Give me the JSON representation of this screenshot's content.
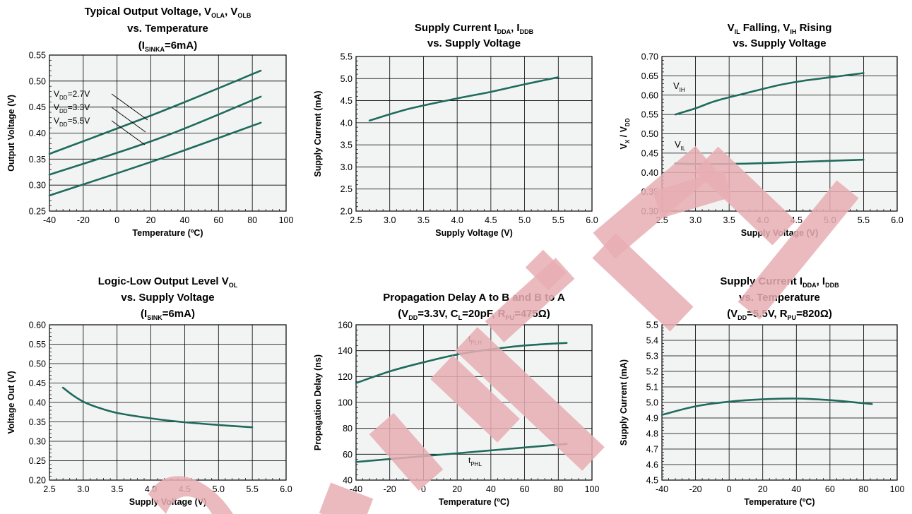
{
  "chart_data": [
    {
      "type": "line",
      "title_lines": [
        "Typical Output Voltage, V_{OLA}, V_{OLB}",
        "vs. Temperature",
        "(I_{SINKA}=6mA)"
      ],
      "xlabel": "Temperature (ºC)",
      "ylabel": "Output Voltage (V)",
      "xlim": [
        -40,
        100
      ],
      "ylim": [
        0.25,
        0.55
      ],
      "xticks": [
        -40,
        -20,
        0,
        20,
        40,
        60,
        80,
        100
      ],
      "yticks": [
        0.25,
        0.3,
        0.35,
        0.4,
        0.45,
        0.5,
        0.55
      ],
      "xtick_labels": [
        "-40",
        "-20",
        "0",
        "20",
        "40",
        "60",
        "80",
        "100"
      ],
      "ytick_labels": [
        "0.25",
        "0.30",
        "0.35",
        "0.40",
        "0.45",
        "0.50",
        "0.55"
      ],
      "grid": true,
      "series": [
        {
          "name": "V_{DD}=2.7V",
          "x": [
            -40,
            25,
            85
          ],
          "y": [
            0.36,
            0.44,
            0.52
          ]
        },
        {
          "name": "V_{DD}=3.3V",
          "x": [
            -40,
            25,
            85
          ],
          "y": [
            0.32,
            0.39,
            0.47
          ]
        },
        {
          "name": "V_{DD}=5.5V",
          "x": [
            -40,
            25,
            85
          ],
          "y": [
            0.28,
            0.35,
            0.42
          ]
        }
      ]
    },
    {
      "type": "line",
      "title_lines": [
        "Supply Current I_{DDA}, I_{DDB}",
        "vs. Supply Voltage"
      ],
      "xlabel": "Supply Voltage (V)",
      "ylabel": "Supply Current (mA)",
      "xlim": [
        2.5,
        6.0
      ],
      "ylim": [
        2.0,
        5.5
      ],
      "xticks": [
        2.5,
        3.0,
        3.5,
        4.0,
        4.5,
        5.0,
        5.5,
        6.0
      ],
      "yticks": [
        2.0,
        2.5,
        3.0,
        3.5,
        4.0,
        4.5,
        5.0,
        5.5
      ],
      "xtick_labels": [
        "2.5",
        "3.0",
        "3.5",
        "4.0",
        "4.5",
        "5.0",
        "5.5",
        "6.0"
      ],
      "ytick_labels": [
        "2.0",
        "2.5",
        "3.0",
        "3.5",
        "4.0",
        "4.5",
        "5.0",
        "5.5"
      ],
      "grid": true,
      "series": [
        {
          "x": [
            2.7,
            3.3,
            4.0,
            4.5,
            5.0,
            5.5
          ],
          "y": [
            4.05,
            4.32,
            4.55,
            4.7,
            4.87,
            5.03
          ]
        }
      ]
    },
    {
      "type": "line",
      "title_lines": [
        "V_{IL} Falling, V_{IH} Rising",
        "vs. Supply Voltage"
      ],
      "xlabel": "Supply Voltage (V)",
      "ylabel": "V_{X} / V_{DD}",
      "xlim": [
        2.5,
        6.0
      ],
      "ylim": [
        0.3,
        0.7
      ],
      "xticks": [
        2.5,
        3.0,
        3.5,
        4.0,
        4.5,
        5.0,
        5.5,
        6.0
      ],
      "yticks": [
        0.3,
        0.35,
        0.4,
        0.45,
        0.5,
        0.55,
        0.6,
        0.65,
        0.7
      ],
      "xtick_labels": [
        "2.5",
        "3.0",
        "3.5",
        "4.0",
        "4.5",
        "5.0",
        "5.5",
        "6.0"
      ],
      "ytick_labels": [
        "0.30",
        "0.35",
        "0.40",
        "0.45",
        "0.50",
        "0.55",
        "0.60",
        "0.65",
        "0.70"
      ],
      "grid": true,
      "series": [
        {
          "name": "V_{IH}",
          "x": [
            2.7,
            3.0,
            3.3,
            3.7,
            4.0,
            4.3,
            4.6,
            5.0,
            5.5
          ],
          "y": [
            0.55,
            0.566,
            0.585,
            0.603,
            0.616,
            0.628,
            0.637,
            0.646,
            0.657
          ]
        },
        {
          "name": "V_{IL}",
          "x": [
            2.7,
            3.0,
            3.5,
            4.0,
            4.5,
            5.0,
            5.5
          ],
          "y": [
            0.423,
            0.422,
            0.422,
            0.424,
            0.427,
            0.43,
            0.433
          ]
        }
      ]
    },
    {
      "type": "line",
      "title_lines": [
        "Logic-Low Output Level V_{OL}",
        "vs. Supply Voltage",
        "(I_{SINK}=6mA)"
      ],
      "xlabel": "Supply Voltage (V)",
      "ylabel": "Voltage Out (V)",
      "xlim": [
        2.5,
        6.0
      ],
      "ylim": [
        0.2,
        0.6
      ],
      "xticks": [
        2.5,
        3.0,
        3.5,
        4.0,
        4.5,
        5.0,
        5.5,
        6.0
      ],
      "yticks": [
        0.2,
        0.25,
        0.3,
        0.35,
        0.4,
        0.45,
        0.5,
        0.55,
        0.6
      ],
      "xtick_labels": [
        "2.5",
        "3.0",
        "3.5",
        "4.0",
        "4.5",
        "5.0",
        "5.5",
        "6.0"
      ],
      "ytick_labels": [
        "0.20",
        "0.25",
        "0.30",
        "0.35",
        "0.40",
        "0.45",
        "0.50",
        "0.55",
        "0.60"
      ],
      "grid": true,
      "series": [
        {
          "x": [
            2.7,
            2.85,
            3.0,
            3.2,
            3.5,
            4.0,
            4.5,
            5.0,
            5.5
          ],
          "y": [
            0.438,
            0.418,
            0.402,
            0.388,
            0.373,
            0.359,
            0.349,
            0.342,
            0.336
          ]
        }
      ]
    },
    {
      "type": "line",
      "title_lines": [
        "Propagation Delay A to B and B to A",
        "(V_{DD}=3.3V, C_{L}=20pF, R_{PU}=475Ω)"
      ],
      "xlabel": "Temperature (ºC)",
      "ylabel": "Propagation Delay (ns)",
      "xlim": [
        -40,
        100
      ],
      "ylim": [
        40,
        160
      ],
      "xticks": [
        -40,
        -20,
        0,
        20,
        40,
        60,
        80,
        100
      ],
      "yticks": [
        40,
        60,
        80,
        100,
        120,
        140,
        160
      ],
      "xtick_labels": [
        "-40",
        "-20",
        "0",
        "20",
        "40",
        "60",
        "80",
        "100"
      ],
      "ytick_labels": [
        "40",
        "60",
        "80",
        "100",
        "120",
        "140",
        "160"
      ],
      "grid": true,
      "series": [
        {
          "name": "t_{PLH}",
          "x": [
            -40,
            -20,
            0,
            20,
            40,
            60,
            85
          ],
          "y": [
            115,
            124,
            131,
            137,
            141,
            144,
            146
          ]
        },
        {
          "name": "t_{PHL}",
          "x": [
            -40,
            85
          ],
          "y": [
            54,
            68
          ]
        }
      ]
    },
    {
      "type": "line",
      "title_lines": [
        "Supply Current I_{DDA}, I_{DDB}",
        "vs. Temperature",
        "(V_{DD}=5.5V, R_{PU}=820Ω)"
      ],
      "xlabel": "Temperature (ºC)",
      "ylabel": "Supply Current (mA)",
      "xlim": [
        -40,
        100
      ],
      "ylim": [
        4.5,
        5.5
      ],
      "xticks": [
        -40,
        -20,
        0,
        20,
        40,
        60,
        80,
        100
      ],
      "yticks": [
        4.5,
        4.6,
        4.7,
        4.8,
        4.9,
        5.0,
        5.1,
        5.2,
        5.3,
        5.4,
        5.5
      ],
      "xtick_labels": [
        "-40",
        "-20",
        "0",
        "20",
        "40",
        "60",
        "80",
        "100"
      ],
      "ytick_labels": [
        "4.5",
        "4.6",
        "4.7",
        "4.8",
        "4.9",
        "5.0",
        "5.1",
        "5.2",
        "5.3",
        "5.4",
        "5.5"
      ],
      "grid": true,
      "series": [
        {
          "x": [
            -40,
            -20,
            0,
            20,
            40,
            60,
            85
          ],
          "y": [
            4.92,
            4.975,
            5.005,
            5.02,
            5.025,
            5.015,
            4.99
          ]
        }
      ]
    }
  ],
  "watermark": {
    "text": "OBSOLETE",
    "color": "#e8aeb4"
  },
  "colors": {
    "line": "#1f6b5c",
    "grid": "#000000"
  }
}
